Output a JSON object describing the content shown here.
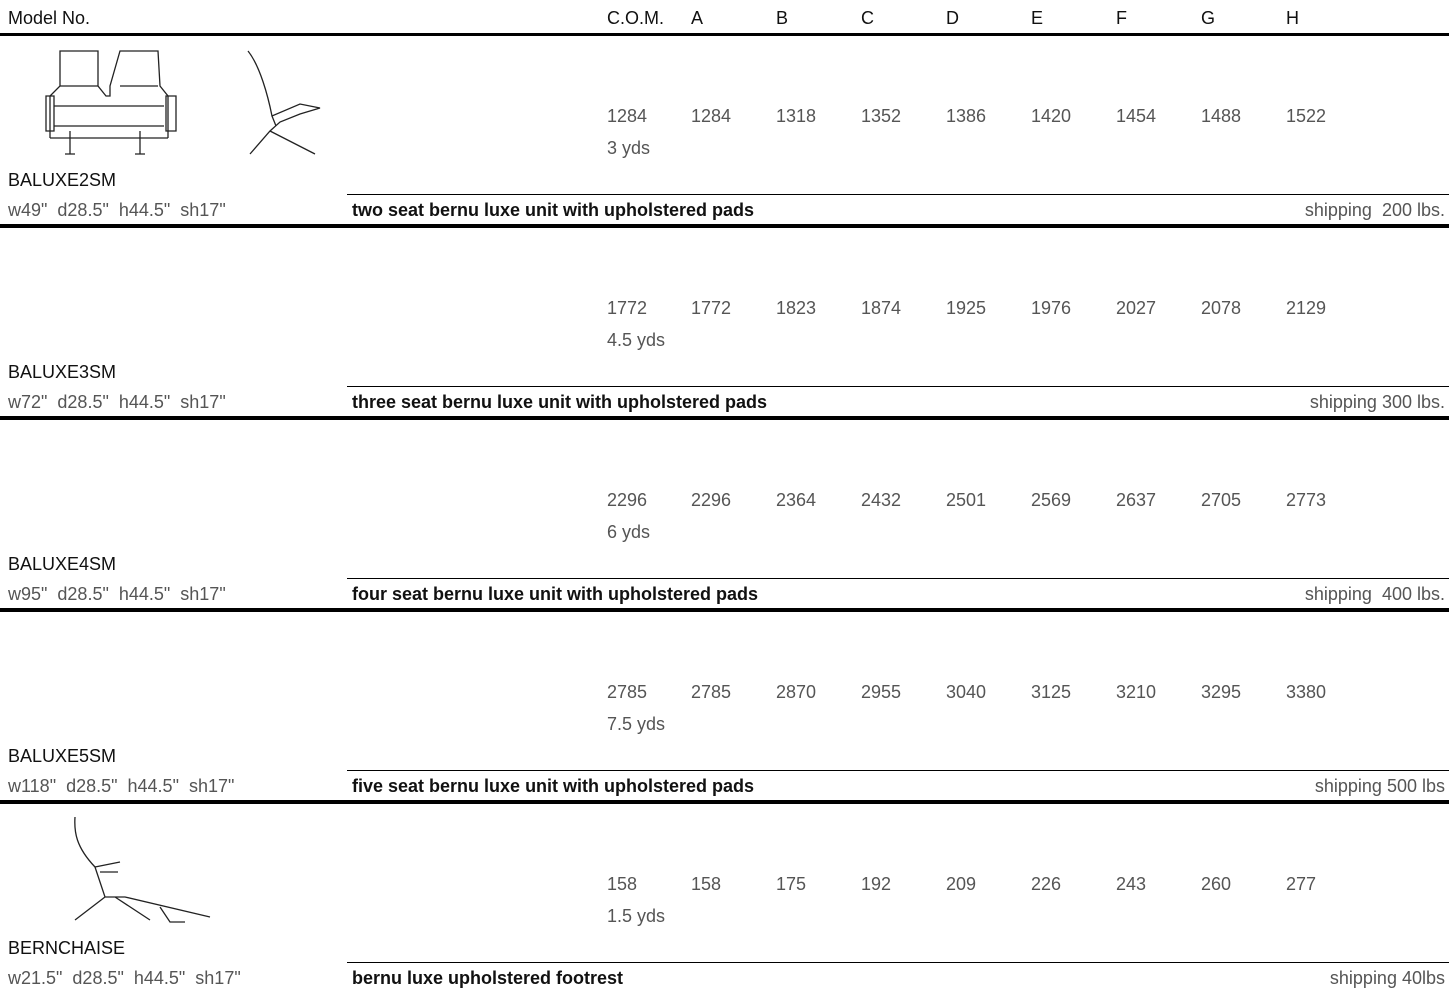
{
  "header": {
    "model_label": "Model No.",
    "columns": [
      "C.O.M.",
      "A",
      "B",
      "C",
      "D",
      "E",
      "F",
      "G",
      "H"
    ]
  },
  "rows": [
    {
      "model": "BALUXE2SM",
      "dims": "w49\"  d28.5\"  h44.5\"  sh17\"",
      "description": "two seat bernu luxe unit with upholstered pads",
      "shipping": "shipping  200 lbs.",
      "com": {
        "price": 1284,
        "yards": "3 yds"
      },
      "prices": [
        1284,
        1318,
        1352,
        1386,
        1420,
        1454,
        1488,
        1522
      ]
    },
    {
      "model": "BALUXE3SM",
      "dims": "w72\"  d28.5\"  h44.5\"  sh17\"",
      "description": "three seat bernu luxe unit with upholstered pads",
      "shipping": "shipping 300 lbs.",
      "com": {
        "price": 1772,
        "yards": "4.5 yds"
      },
      "prices": [
        1772,
        1823,
        1874,
        1925,
        1976,
        2027,
        2078,
        2129
      ]
    },
    {
      "model": "BALUXE4SM",
      "dims": "w95\"  d28.5\"  h44.5\"  sh17\"",
      "description": "four seat bernu luxe unit with upholstered pads",
      "shipping": "shipping  400 lbs.",
      "com": {
        "price": 2296,
        "yards": "6 yds"
      },
      "prices": [
        2296,
        2364,
        2432,
        2501,
        2569,
        2637,
        2705,
        2773
      ]
    },
    {
      "model": "BALUXE5SM",
      "dims": "w118\"  d28.5\"  h44.5\"  sh17\"",
      "description": "five seat bernu luxe unit with upholstered pads",
      "shipping": "shipping 500 lbs",
      "com": {
        "price": 2785,
        "yards": "7.5 yds"
      },
      "prices": [
        2785,
        2870,
        2955,
        3040,
        3125,
        3210,
        3295,
        3380
      ]
    },
    {
      "model": "BERNCHAISE",
      "dims": "w21.5\"  d28.5\"  h44.5\"  sh17\"",
      "description": "bernu luxe upholstered footrest",
      "shipping": "shipping 40lbs",
      "com": {
        "price": 158,
        "yards": "1.5 yds"
      },
      "prices": [
        158,
        175,
        192,
        209,
        226,
        243,
        260,
        277
      ]
    }
  ]
}
